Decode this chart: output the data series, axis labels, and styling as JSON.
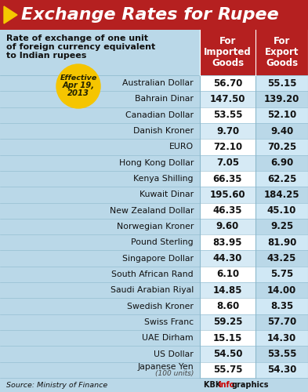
{
  "title": "Exchange Rates for Rupee",
  "subtitle_line1": "Rate of exchange of one unit",
  "subtitle_line2": "of foreign currency equivalent",
  "subtitle_line3": "to Indian rupees",
  "col1_header": "For\nImported\nGoods",
  "col2_header": "For\nExport\nGoods",
  "currencies": [
    "Australian Dollar",
    "Bahrain Dinar",
    "Canadian Dollar",
    "Danish Kroner",
    "EURO",
    "Hong Kong Dollar",
    "Kenya Shilling",
    "Kuwait Dinar",
    "New Zealand Dollar",
    "Norwegian Kroner",
    "Pound Sterling",
    "Singapore Dollar",
    "South African Rand",
    "Saudi Arabian Riyal",
    "Swedish Kroner",
    "Swiss Franc",
    "UAE Dirham",
    "US Dollar",
    "Japanese Yen|(100 units)"
  ],
  "imported": [
    56.7,
    147.5,
    53.55,
    9.7,
    72.1,
    7.05,
    66.35,
    195.6,
    46.35,
    9.6,
    83.95,
    44.3,
    6.1,
    14.85,
    8.6,
    59.25,
    15.15,
    54.5,
    55.75
  ],
  "export": [
    55.15,
    139.2,
    52.1,
    9.4,
    70.25,
    6.9,
    62.25,
    184.25,
    45.1,
    9.25,
    81.9,
    43.25,
    5.75,
    14.0,
    8.35,
    57.7,
    14.3,
    53.55,
    54.3
  ],
  "bg_color": "#bad8e8",
  "title_bg": "#b52020",
  "title_color": "#ffffff",
  "source_text": "Source: Ministry of Finance",
  "credit_text1": "KBK ",
  "credit_text2": "Info",
  "credit_text3": "graphics"
}
